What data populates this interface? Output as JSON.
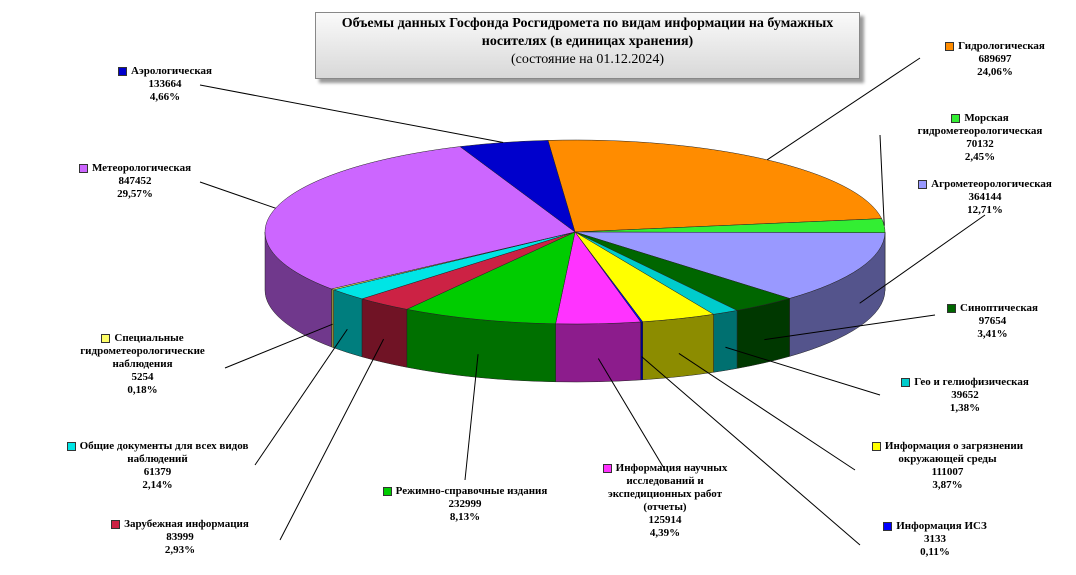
{
  "chart_data": {
    "type": "pie3d",
    "title": "Объемы данных Госфонда Росгидромета по видам информации на бумажных носителях (в единицах хранения)",
    "subtitle": "(состояние на 01.12.2024)",
    "categories": [
      "Гидрологическая",
      "Морская гидрометеорологическая",
      "Агрометеорологическая",
      "Синоптическая",
      "Гео и гелиофизическая",
      "Информация о загрязнении окружающей среды",
      "Информация ИСЗ",
      "Информация научных исследований и экспедиционных работ (отчеты)",
      "Режимно-справочные издания",
      "Зарубежная информация",
      "Общие документы для всех видов наблюдений",
      "Специальные гидрометеорологические наблюдения",
      "Метеорологическая",
      "Аэрологическая"
    ],
    "counts": [
      689697,
      70132,
      364144,
      97654,
      39652,
      111007,
      3133,
      125914,
      232999,
      83999,
      61379,
      5254,
      847452,
      133664
    ],
    "values": [
      24.06,
      2.45,
      12.71,
      3.41,
      1.38,
      3.87,
      0.11,
      4.39,
      8.13,
      2.93,
      2.14,
      0.18,
      29.57,
      4.66
    ],
    "value_labels": [
      "24,06%",
      "2,45%",
      "12,71%",
      "3,41%",
      "1,38%",
      "3,87%",
      "0,11%",
      "4,39%",
      "8,13%",
      "2,93%",
      "2,14%",
      "0,18%",
      "29,57%",
      "4,66%"
    ],
    "colors": [
      "#ff8c00",
      "#33ee33",
      "#9999ff",
      "#006600",
      "#00cccc",
      "#ffff00",
      "#0000ff",
      "#ff33ff",
      "#00cc00",
      "#cc2244",
      "#00e5e5",
      "#ffff66",
      "#cc66ff",
      "#0000cc"
    ]
  }
}
